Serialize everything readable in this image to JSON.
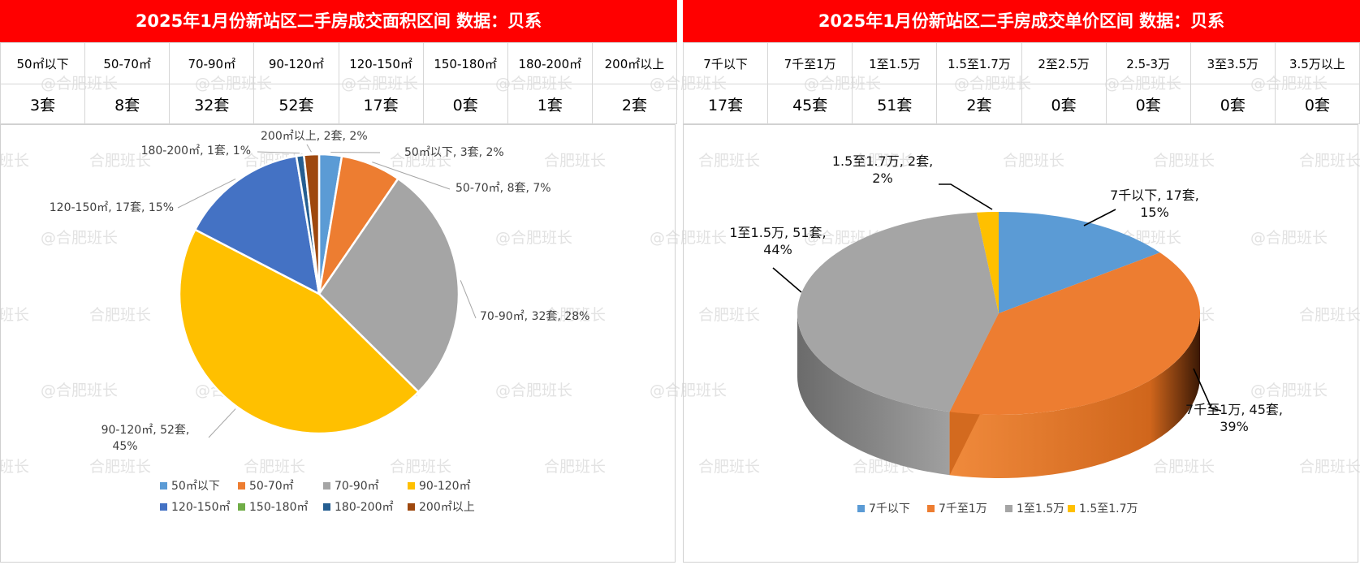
{
  "left": {
    "title": "2025年1月份新站区二手房成交面积区间 数据：贝系",
    "headers": [
      "50㎡以下",
      "50-70㎡",
      "70-90㎡",
      "90-120㎡",
      "120-150㎡",
      "150-180㎡",
      "180-200㎡",
      "200㎡以上"
    ],
    "counts": [
      "3套",
      "8套",
      "32套",
      "52套",
      "17套",
      "0套",
      "1套",
      "2套"
    ]
  },
  "right": {
    "title": "2025年1月份新站区二手房成交单价区间 数据：贝系",
    "headers": [
      "7千以下",
      "7千至1万",
      "1至1.5万",
      "1.5至1.7万",
      "2至2.5万",
      "2.5-3万",
      "3至3.5万",
      "3.5万以上"
    ],
    "counts": [
      "17套",
      "45套",
      "51套",
      "2套",
      "0套",
      "0套",
      "0套",
      "0套"
    ]
  },
  "watermark": "@合肥班长",
  "chart_data": [
    {
      "type": "pie",
      "categories": [
        "50㎡以下",
        "50-70㎡",
        "70-90㎡",
        "90-120㎡",
        "120-150㎡",
        "150-180㎡",
        "180-200㎡",
        "200㎡以上"
      ],
      "values": [
        3,
        8,
        32,
        52,
        17,
        0,
        1,
        2
      ],
      "data_labels": [
        "50㎡以下, 3套, 2%",
        "50-70㎡, 8套, 7%",
        "70-90㎡, 32套, 28%",
        "90-120㎡, 52套, 45%",
        "120-150㎡, 17套, 15%",
        "",
        "180-200㎡, 1套, 1%",
        "200㎡以上, 2套, 2%"
      ],
      "colors": [
        "#5b9bd5",
        "#ed7d31",
        "#a5a5a5",
        "#ffc000",
        "#4472c4",
        "#70ad47",
        "#255e91",
        "#9e480e"
      ],
      "legend": "bottom"
    },
    {
      "type": "pie",
      "style": "3d",
      "categories": [
        "7千以下",
        "7千至1万",
        "1至1.5万",
        "1.5至1.7万"
      ],
      "values": [
        17,
        45,
        51,
        2
      ],
      "data_labels": [
        "7千以下, 17套, 15%",
        "7千至1万, 45套, 39%",
        "1至1.5万, 51套, 44%",
        "1.5至1.7万, 2套, 2%"
      ],
      "colors": [
        "#5b9bd5",
        "#ed7d31",
        "#a5a5a5",
        "#ffc000"
      ],
      "legend": "bottom"
    }
  ]
}
